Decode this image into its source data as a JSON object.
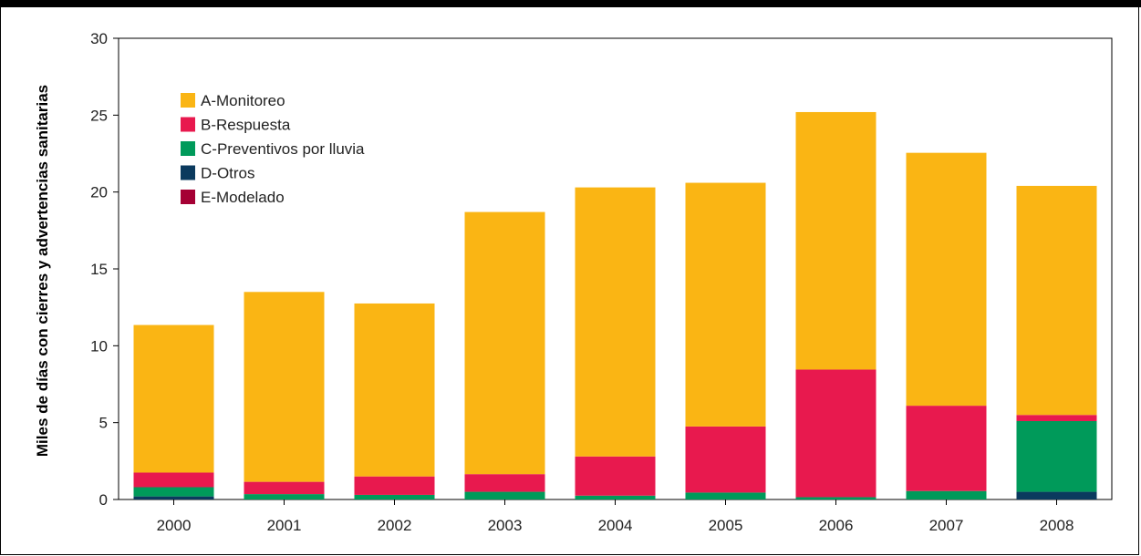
{
  "chart_data": {
    "type": "bar",
    "stacked": true,
    "title": "",
    "xlabel": "",
    "ylabel": "Miles de días con cierres y advertencias sanitarias",
    "ylim": [
      0,
      30
    ],
    "yticks": [
      0,
      5,
      10,
      15,
      20,
      25,
      30
    ],
    "categories": [
      "2000",
      "2001",
      "2002",
      "2003",
      "2004",
      "2005",
      "2006",
      "2007",
      "2008"
    ],
    "series": [
      {
        "name": "E-Modelado",
        "color": "#a50034",
        "values": [
          0.0,
          0.0,
          0.0,
          0.0,
          0.0,
          0.0,
          0.0,
          0.0,
          0.0
        ]
      },
      {
        "name": "D-Otros",
        "color": "#0b3a5e",
        "values": [
          0.2,
          0.0,
          0.0,
          0.0,
          0.0,
          0.0,
          0.0,
          0.0,
          0.5
        ]
      },
      {
        "name": "C-Preventivos por lluvia",
        "color": "#009a5a",
        "values": [
          0.6,
          0.35,
          0.3,
          0.5,
          0.25,
          0.45,
          0.15,
          0.55,
          4.6
        ]
      },
      {
        "name": "B-Respuesta",
        "color": "#e8194e",
        "values": [
          0.95,
          0.8,
          1.2,
          1.15,
          2.55,
          4.3,
          8.3,
          5.55,
          0.4
        ]
      },
      {
        "name": "A-Monitoreo",
        "color": "#fab514",
        "values": [
          9.6,
          12.35,
          11.25,
          17.05,
          17.5,
          15.85,
          16.75,
          16.45,
          14.9
        ]
      }
    ],
    "legend_order": [
      "A-Monitoreo",
      "B-Respuesta",
      "C-Preventivos por lluvia",
      "D-Otros",
      "E-Modelado"
    ],
    "legend_position": "top-left",
    "grid": false
  }
}
